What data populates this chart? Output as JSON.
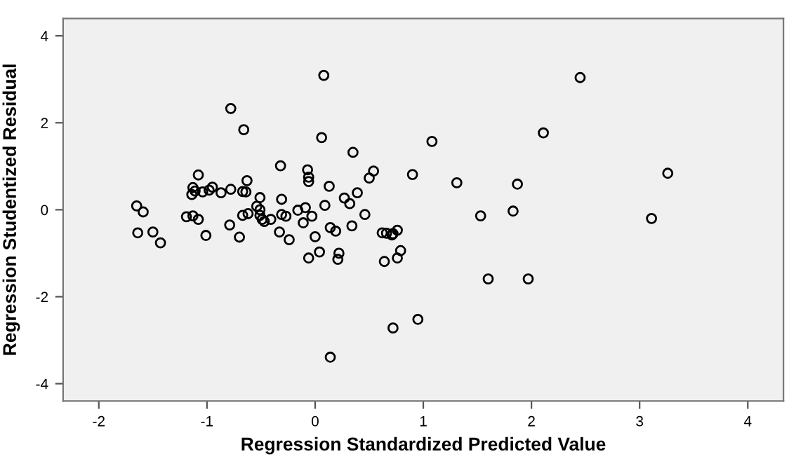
{
  "chart_data": {
    "type": "scatter",
    "xlabel": "Regression Standardized Predicted Value",
    "ylabel": "Regression Studentized Residual",
    "xlim": [
      -2.33,
      4.33
    ],
    "ylim": [
      -4.4,
      4.4
    ],
    "xticks": [
      -2,
      -1,
      0,
      1,
      2,
      3,
      4
    ],
    "yticks": [
      -4,
      -2,
      0,
      2,
      4
    ],
    "grid": false,
    "marker": "circle",
    "series": [
      {
        "color": "#000000",
        "x": [
          0.08,
          -0.78,
          -0.66,
          0.06,
          0.35,
          -0.32,
          -0.07,
          -0.06,
          -0.06,
          0.54,
          0.5,
          0.9,
          -1.08,
          -0.63,
          0.13,
          -1.13,
          -1.11,
          -1.14,
          -1.04,
          -0.98,
          -0.95,
          -0.87,
          -0.78,
          -0.67,
          -0.64,
          -0.51,
          -0.31,
          0.27,
          0.32,
          0.39,
          -1.65,
          -1.59,
          -0.54,
          -0.51,
          -1.19,
          -1.13,
          -1.08,
          -0.67,
          -0.62,
          -0.51,
          -0.49,
          -0.47,
          -0.41,
          -0.31,
          -0.27,
          -0.16,
          -0.09,
          -0.11,
          -0.03,
          0.09,
          0.46,
          -1.64,
          -1.5,
          -1.43,
          -1.01,
          -0.79,
          -0.7,
          -0.33,
          -0.24,
          0.0,
          0.14,
          0.19,
          0.34,
          0.04,
          -0.06,
          0.22,
          0.21,
          0.62,
          0.66,
          0.71,
          0.72,
          0.76,
          0.79,
          0.76,
          0.64,
          0.72,
          0.95,
          0.14,
          2.45,
          2.11,
          1.08,
          1.31,
          1.87,
          3.26,
          1.53,
          1.83,
          3.11,
          1.6,
          1.97
        ],
        "values": [
          3.09,
          2.33,
          1.84,
          1.66,
          1.32,
          1.01,
          0.92,
          0.75,
          0.65,
          0.89,
          0.73,
          0.81,
          0.8,
          0.67,
          0.54,
          0.51,
          0.43,
          0.35,
          0.41,
          0.45,
          0.52,
          0.39,
          0.47,
          0.42,
          0.41,
          0.28,
          0.24,
          0.27,
          0.14,
          0.39,
          0.09,
          -0.05,
          0.08,
          0.0,
          -0.16,
          -0.14,
          -0.22,
          -0.13,
          -0.09,
          -0.13,
          -0.22,
          -0.27,
          -0.22,
          -0.11,
          -0.15,
          -0.01,
          0.05,
          -0.3,
          -0.15,
          0.1,
          -0.11,
          -0.53,
          -0.51,
          -0.76,
          -0.59,
          -0.35,
          -0.63,
          -0.51,
          -0.69,
          -0.62,
          -0.41,
          -0.49,
          -0.37,
          -0.97,
          -1.11,
          -1.0,
          -1.14,
          -0.53,
          -0.54,
          -0.58,
          -0.55,
          -0.47,
          -0.94,
          -1.11,
          -1.19,
          -2.72,
          -2.52,
          -3.39,
          3.04,
          1.77,
          1.57,
          0.62,
          0.59,
          0.84,
          -0.14,
          -0.03,
          -0.2,
          -1.59,
          -1.59
        ]
      }
    ]
  }
}
